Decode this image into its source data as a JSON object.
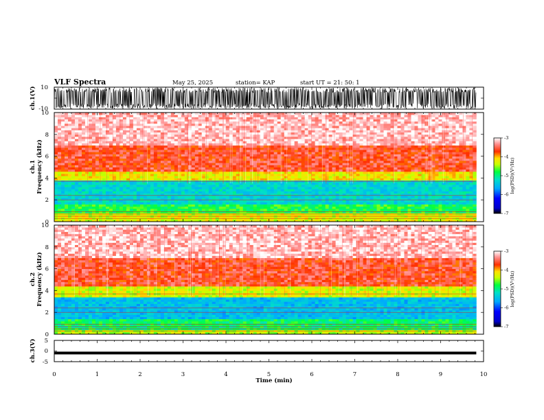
{
  "header": {
    "title": "VLF Spectra",
    "date": "May 25, 2025",
    "station": "station= KAP",
    "start": "start  UT =   21: 50: 1"
  },
  "chart_data": [
    {
      "type": "line",
      "name": "ch1-waveform",
      "ylabel": "ch.1(V)",
      "ylim": [
        -10,
        10
      ],
      "yticks": [
        "10",
        "-10"
      ],
      "xlim": [
        0,
        10
      ]
    },
    {
      "type": "heatmap",
      "name": "ch1-spectrogram",
      "ylabel_line1": "ch.1",
      "ylabel_line2": "Frequency  (kHz)",
      "ylim": [
        0,
        10
      ],
      "yticks": [
        "0",
        "2",
        "4",
        "6",
        "8",
        "10"
      ],
      "xlim": [
        0,
        9.83
      ],
      "bands_khz": [
        {
          "from": 0,
          "to": 0.9,
          "level": -4.3
        },
        {
          "from": 0.9,
          "to": 1.7,
          "level": -4.8
        },
        {
          "from": 1.7,
          "to": 3.9,
          "level": -5.3
        },
        {
          "from": 3.9,
          "to": 4.6,
          "level": -4.2
        },
        {
          "from": 4.6,
          "to": 7.0,
          "level": -3.6
        },
        {
          "from": 7.0,
          "to": 10,
          "level": -3.2
        }
      ],
      "colorbar": {
        "label": "log(PSD)(V²/Hz)",
        "min": -7,
        "max": -3,
        "ticks": [
          "-3",
          "-4",
          "-5",
          "-6",
          "-7"
        ]
      }
    },
    {
      "type": "heatmap",
      "name": "ch2-spectrogram",
      "ylabel_line1": "ch.2",
      "ylabel_line2": "Frequency  (kHz)",
      "ylim": [
        0,
        10
      ],
      "yticks": [
        "0",
        "2",
        "4",
        "6",
        "8",
        "10"
      ],
      "xlim": [
        0,
        9.83
      ],
      "bands_khz": [
        {
          "from": 0,
          "to": 0.5,
          "level": -4.4
        },
        {
          "from": 0.5,
          "to": 1.5,
          "level": -4.9
        },
        {
          "from": 1.5,
          "to": 3.4,
          "level": -5.5
        },
        {
          "from": 3.4,
          "to": 4.5,
          "level": -4.3
        },
        {
          "from": 4.5,
          "to": 7.0,
          "level": -3.6
        },
        {
          "from": 7.0,
          "to": 10,
          "level": -3.2
        }
      ],
      "colorbar": {
        "label": "log(PSD)(V²/Hz)",
        "min": -7,
        "max": -3,
        "ticks": [
          "-3",
          "-4",
          "-5",
          "-6",
          "-7"
        ]
      }
    },
    {
      "type": "line",
      "name": "ch3-waveform",
      "ylabel": "ch.3(V)",
      "ylim": [
        -5,
        5
      ],
      "yticks": [
        "5",
        "0",
        "-5"
      ],
      "level_v": [
        -1.6,
        -0.3
      ],
      "xlim": [
        0,
        9.83
      ]
    }
  ],
  "x_axis": {
    "label": "Time  (min)",
    "range": [
      0,
      10
    ],
    "ticks": [
      "0",
      "1",
      "2",
      "3",
      "4",
      "5",
      "6",
      "7",
      "8",
      "9",
      "10"
    ]
  }
}
